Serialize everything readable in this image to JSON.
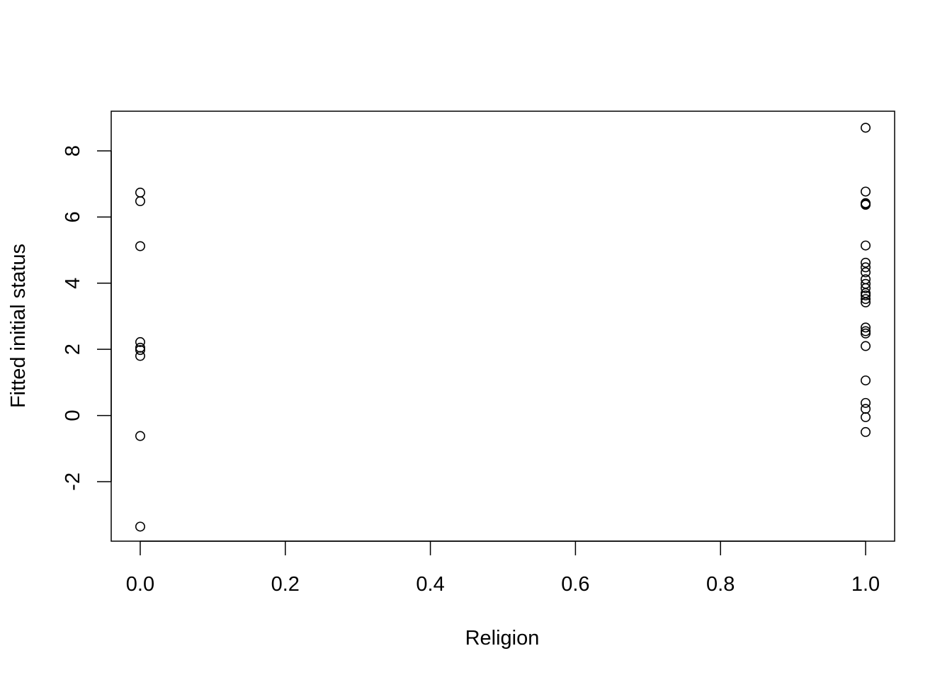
{
  "chart_data": {
    "type": "scatter",
    "title": "",
    "xlabel": "Religion",
    "ylabel": "Fitted initial status",
    "xlim": [
      -0.04,
      1.04
    ],
    "ylim": [
      -3.8,
      9.2
    ],
    "x_ticks": [
      0.0,
      0.2,
      0.4,
      0.6,
      0.8,
      1.0
    ],
    "x_tick_labels": [
      "0.0",
      "0.2",
      "0.4",
      "0.6",
      "0.8",
      "1.0"
    ],
    "y_ticks": [
      -2,
      0,
      2,
      4,
      6,
      8
    ],
    "y_tick_labels": [
      "-2",
      "0",
      "2",
      "4",
      "6",
      "8"
    ],
    "grid": false,
    "legend": "none",
    "marker": "open-circle",
    "series": [
      {
        "x": [
          0,
          0,
          0,
          0,
          0,
          0,
          0,
          0,
          0,
          1,
          1,
          1,
          1,
          1,
          1,
          1,
          1,
          1,
          1,
          1,
          1,
          1,
          1,
          1,
          1,
          1,
          1,
          1,
          1,
          1,
          1,
          1,
          1,
          1
        ],
        "y": [
          6.74,
          6.48,
          5.12,
          2.22,
          1.98,
          1.8,
          -0.62,
          -3.36,
          2.05,
          8.7,
          6.77,
          6.42,
          6.37,
          5.14,
          4.62,
          4.48,
          4.33,
          3.98,
          3.85,
          3.63,
          3.52,
          3.42,
          2.66,
          2.48,
          2.1,
          1.06,
          0.38,
          0.2,
          -0.05,
          -0.5,
          4.12,
          3.7,
          2.55,
          6.4
        ]
      }
    ]
  }
}
